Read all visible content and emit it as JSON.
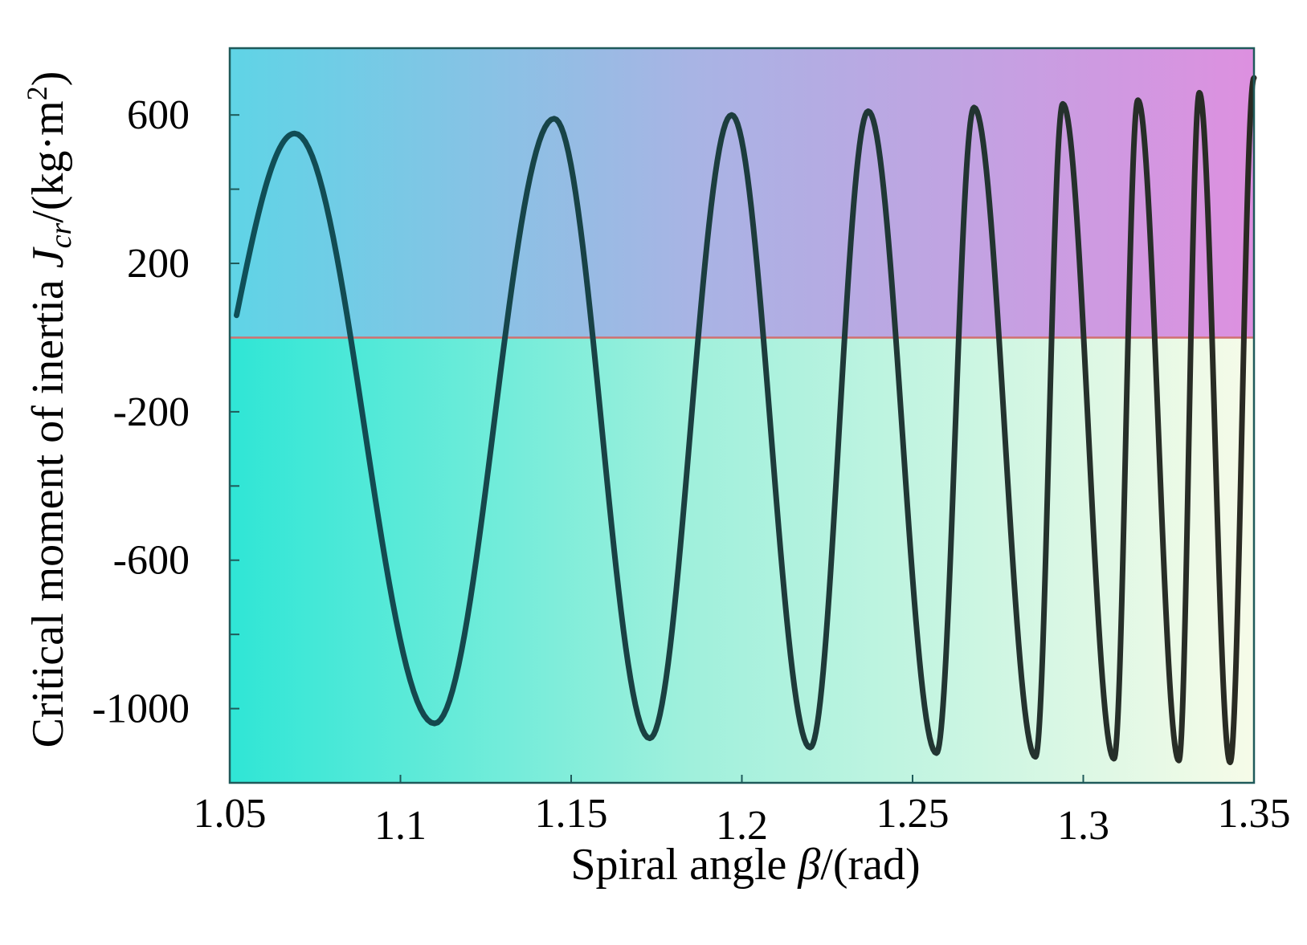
{
  "chart_data": {
    "type": "line",
    "title": "",
    "xlabel_prefix": "Spiral angle ",
    "xlabel_symbol": "β",
    "xlabel_suffix": "/(rad)",
    "ylabel_prefix": "Critical moment of inertia ",
    "ylabel_symbol": "J",
    "ylabel_subscript": "cr",
    "ylabel_suffix_open": "/(kg·m",
    "ylabel_suffix_sup": "2",
    "ylabel_suffix_close": ")",
    "xlim": [
      1.05,
      1.35
    ],
    "ylim": [
      -1200,
      780
    ],
    "xticks": [
      {
        "value": 1.05,
        "label": "1.05"
      },
      {
        "value": 1.1,
        "label": "1.1"
      },
      {
        "value": 1.15,
        "label": "1.15"
      },
      {
        "value": 1.2,
        "label": "1.2"
      },
      {
        "value": 1.25,
        "label": "1.25"
      },
      {
        "value": 1.3,
        "label": "1.3"
      },
      {
        "value": 1.35,
        "label": "1.35"
      }
    ],
    "yticks_labeled": [
      {
        "value": 600,
        "label": "600"
      },
      {
        "value": 200,
        "label": "200"
      },
      {
        "value": -200,
        "label": "-200"
      },
      {
        "value": -600,
        "label": "-600"
      },
      {
        "value": -1000,
        "label": "-1000"
      }
    ],
    "yticks_minor": [
      400,
      0,
      -400,
      -800
    ],
    "zero_line": {
      "y": 0,
      "color": "#d07070"
    },
    "series": [
      {
        "name": "J_cr",
        "color_start": "#0f4f58",
        "color_end": "#2a2a22",
        "curve_start": {
          "x": 1.052,
          "y": 60
        },
        "curve_end": {
          "x": 1.35,
          "y": 700
        },
        "maxima": [
          {
            "x": 1.069,
            "y": 550
          },
          {
            "x": 1.145,
            "y": 590
          },
          {
            "x": 1.197,
            "y": 600
          },
          {
            "x": 1.237,
            "y": 610
          },
          {
            "x": 1.268,
            "y": 620
          },
          {
            "x": 1.294,
            "y": 630
          },
          {
            "x": 1.316,
            "y": 640
          },
          {
            "x": 1.334,
            "y": 660
          }
        ],
        "minima": [
          {
            "x": 1.11,
            "y": -1040
          },
          {
            "x": 1.173,
            "y": -1080
          },
          {
            "x": 1.22,
            "y": -1105
          },
          {
            "x": 1.257,
            "y": -1120
          },
          {
            "x": 1.286,
            "y": -1130
          },
          {
            "x": 1.309,
            "y": -1135
          },
          {
            "x": 1.328,
            "y": -1140
          },
          {
            "x": 1.343,
            "y": -1145
          }
        ],
        "zero_crossings": [
          1.087,
          1.133,
          1.159,
          1.188,
          1.207,
          1.228,
          1.248,
          1.265,
          1.274,
          1.289,
          1.297,
          1.309,
          1.316,
          1.325,
          1.331,
          1.345
        ]
      }
    ],
    "background": {
      "upper_left": "#5fd4e6",
      "upper_mid": "#a8b4e4",
      "upper_right": "#dd90e0",
      "lower_left": "#2fe6d6",
      "lower_mid": "#a0f0dc",
      "lower_right": "#f6fbe8"
    },
    "legend": "none",
    "grid": false
  }
}
